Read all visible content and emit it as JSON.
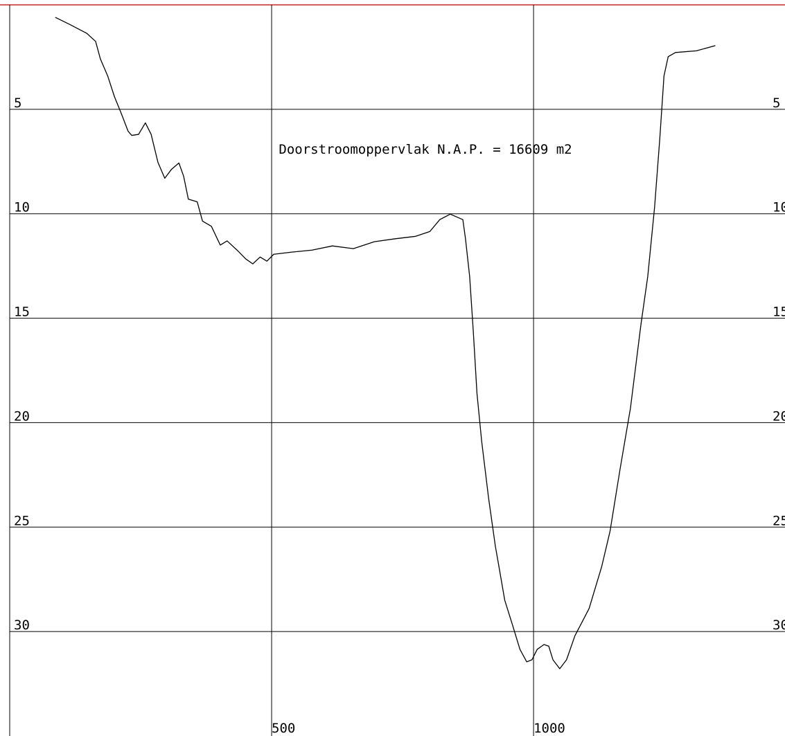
{
  "chart_data": {
    "type": "line",
    "annotation": "Doorstroomoppervlak N.A.P. = 16609 m2",
    "xlim": [
      0,
      1480
    ],
    "xticks": [
      500,
      1000
    ],
    "ylim": [
      0,
      35
    ],
    "yticks": [
      5,
      10,
      15,
      20,
      25,
      30
    ],
    "invert_y": true,
    "grid": true,
    "x": [
      87,
      114,
      147,
      164,
      173,
      187,
      200,
      213,
      226,
      233,
      246,
      259,
      270,
      283,
      296,
      309,
      323,
      332,
      341,
      358,
      368,
      385,
      402,
      415,
      434,
      451,
      464,
      478,
      491,
      504,
      537,
      577,
      616,
      656,
      696,
      735,
      775,
      802,
      821,
      841,
      865,
      870,
      878,
      885,
      892,
      901,
      914,
      927,
      934,
      945,
      960,
      974,
      987,
      997,
      1007,
      1020,
      1029,
      1037,
      1050,
      1063,
      1079,
      1106,
      1130,
      1146,
      1165,
      1185,
      1205,
      1218,
      1231,
      1241,
      1249,
      1257,
      1271,
      1311,
      1347
    ],
    "series": [
      {
        "color": "#000000",
        "values": [
          0.6,
          0.93,
          1.36,
          1.75,
          2.58,
          3.4,
          4.4,
          5.2,
          6.05,
          6.25,
          6.2,
          5.65,
          6.2,
          7.54,
          8.3,
          7.87,
          7.57,
          8.2,
          9.3,
          9.43,
          10.35,
          10.6,
          11.5,
          11.3,
          11.74,
          12.17,
          12.4,
          12.07,
          12.27,
          11.94,
          11.84,
          11.74,
          11.54,
          11.67,
          11.34,
          11.2,
          11.08,
          10.85,
          10.28,
          10.02,
          10.28,
          11.18,
          13.0,
          15.64,
          18.6,
          20.9,
          23.58,
          25.9,
          26.9,
          28.5,
          29.7,
          30.85,
          31.45,
          31.35,
          30.85,
          30.62,
          30.7,
          31.35,
          31.78,
          31.35,
          30.2,
          28.9,
          26.9,
          25.2,
          22.25,
          19.3,
          15.3,
          13.0,
          9.7,
          6.4,
          3.4,
          2.48,
          2.28,
          2.2,
          1.95
        ]
      }
    ]
  }
}
